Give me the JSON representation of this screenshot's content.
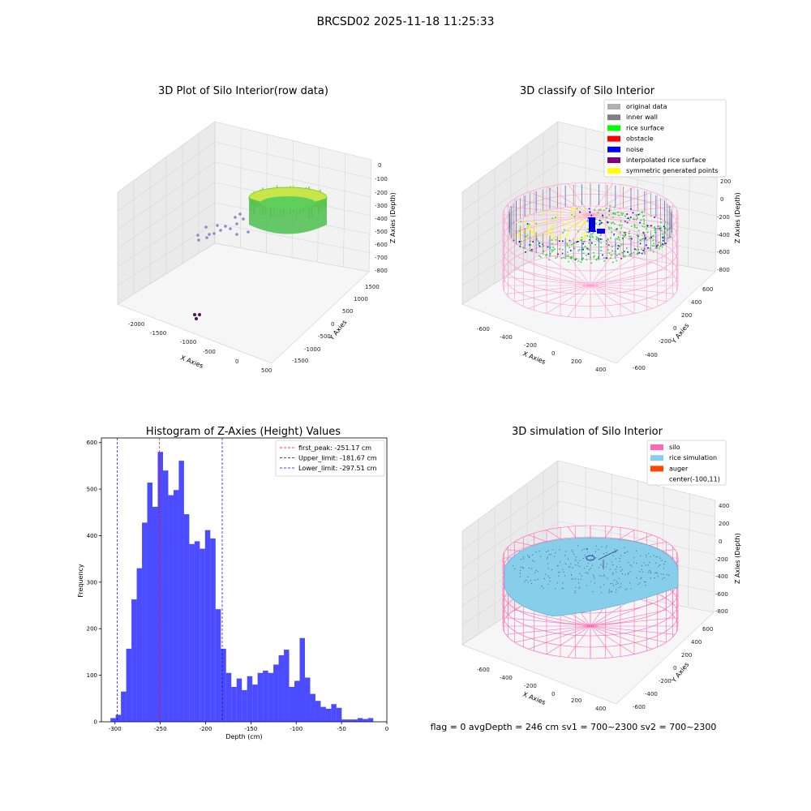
{
  "suptitle": "BRCSD02 2025-11-18 11:25:33",
  "footer": "flag = 0     avgDepth = 246 cm  sv1 = 700~2300  sv2 = 700~2300",
  "panel1": {
    "title": "3D Plot of Silo Interior(row data)",
    "xlabel": "X Axies",
    "ylabel": "Y Axies",
    "zlabel": "Z Axies (Depth)",
    "xticks": [
      "-2000",
      "-1500",
      "-1000",
      "-500",
      "0",
      "500"
    ],
    "yticks": [
      "-1500",
      "-1000",
      "-500",
      "0",
      "500",
      "1000",
      "1500"
    ],
    "zticks": [
      "0",
      "-100",
      "-200",
      "-300",
      "-400",
      "-500",
      "-600",
      "-700",
      "-800"
    ]
  },
  "panel2": {
    "title": "3D classify of Silo Interior",
    "xlabel": "X Axies",
    "ylabel": "Y Axies",
    "zlabel": "Z Axies (Depth)",
    "xticks": [
      "-600",
      "-400",
      "-200",
      "0",
      "200",
      "400"
    ],
    "yticks": [
      "-600",
      "-400",
      "-200",
      "0",
      "200",
      "400",
      "600"
    ],
    "zticks": [
      "200",
      "0",
      "-200",
      "-400",
      "-600",
      "-800"
    ],
    "legend": [
      {
        "label": "original data",
        "color": "#b0b0b0"
      },
      {
        "label": "inner wall",
        "color": "#808080"
      },
      {
        "label": "rice surface",
        "color": "#00ff00"
      },
      {
        "label": "obstacle",
        "color": "#ff0000"
      },
      {
        "label": "noise",
        "color": "#0000ff"
      },
      {
        "label": "interpolated rice surface",
        "color": "#800080"
      },
      {
        "label": "symmetric generated points",
        "color": "#ffff00"
      }
    ]
  },
  "panel4": {
    "title": "3D simulation of Silo Interior",
    "xlabel": "X Axies",
    "ylabel": "Y Axies",
    "zlabel": "Z Axies (Depth)",
    "xticks": [
      "-600",
      "-400",
      "-200",
      "0",
      "200",
      "400"
    ],
    "yticks": [
      "-600",
      "-400",
      "-200",
      "0",
      "200",
      "400",
      "600"
    ],
    "zticks": [
      "400",
      "200",
      "0",
      "-200",
      "-400",
      "-600",
      "-800"
    ],
    "legend": [
      {
        "label": "silo",
        "color": "#ff69b4"
      },
      {
        "label": "rice simulation",
        "color": "#87ceeb"
      },
      {
        "label": "auger",
        "color": "#ff4500"
      },
      {
        "label": "center(-100,11)",
        "color": ""
      }
    ]
  },
  "chart_data": {
    "type": "bar",
    "title": "Histogram of Z-Axies (Height) Values",
    "xlabel": "Depth (cm)",
    "ylabel": "Frequency",
    "xlim": [
      -315,
      0
    ],
    "ylim": [
      0,
      610
    ],
    "xticks": [
      -300,
      -250,
      -200,
      -150,
      -100,
      -50,
      0
    ],
    "yticks": [
      0,
      100,
      200,
      300,
      400,
      500,
      600
    ],
    "bin_start": -305,
    "bin_width": 5.8,
    "values": [
      8,
      15,
      65,
      157,
      263,
      330,
      428,
      514,
      462,
      580,
      540,
      487,
      498,
      561,
      446,
      382,
      388,
      372,
      412,
      394,
      242,
      157,
      105,
      75,
      93,
      68,
      98,
      80,
      105,
      110,
      105,
      123,
      143,
      155,
      75,
      88,
      180,
      95,
      60,
      45,
      32,
      28,
      38,
      30,
      5,
      5,
      5,
      8,
      6,
      8
    ],
    "bar_color": "#0000ff",
    "vlines": [
      {
        "x": -251.17,
        "color": "#ff0000",
        "label": "first_peak: -251.17 cm"
      },
      {
        "x": -181.67,
        "color": "#0000ff",
        "label": "Upper_limit: -181.67 cm"
      },
      {
        "x": -297.51,
        "color": "#0000ff",
        "label": "Lower_limit: -297.51 cm"
      }
    ],
    "legend_position": "top-right"
  }
}
